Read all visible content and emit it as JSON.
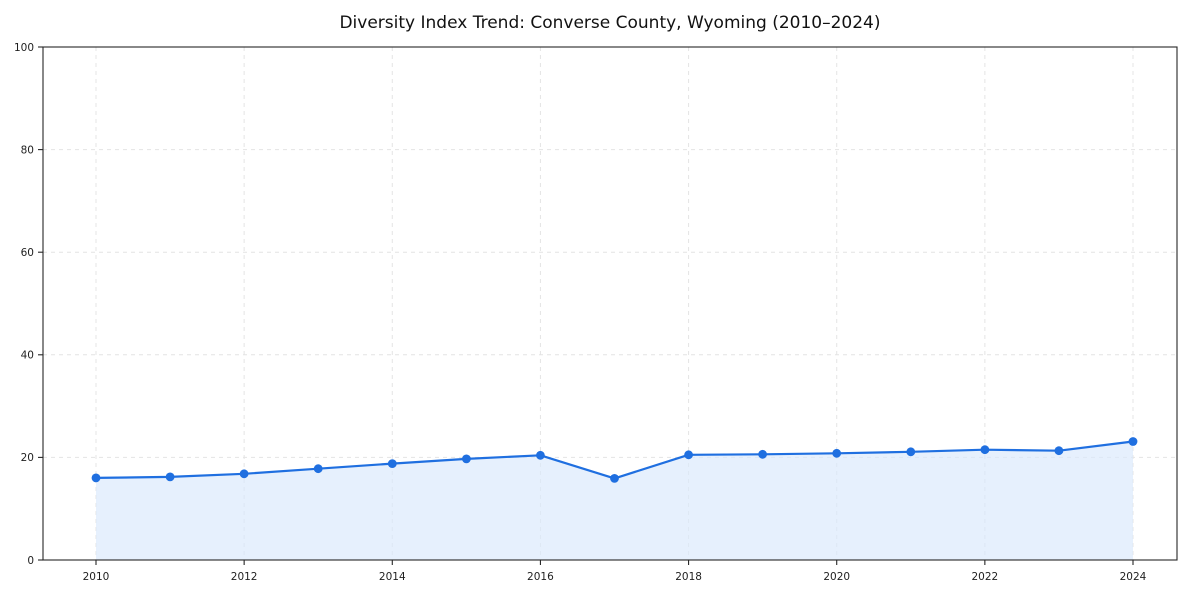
{
  "page": {
    "title": "Diversity Index Trend: Converse County, Wyoming (2010–2024)"
  },
  "chart_data": {
    "type": "area",
    "title": "Diversity Index Trend: Converse County, Wyoming (2010–2024)",
    "x": [
      2010,
      2011,
      2012,
      2013,
      2014,
      2015,
      2016,
      2017,
      2018,
      2019,
      2020,
      2021,
      2022,
      2023,
      2024
    ],
    "values": [
      16.0,
      16.2,
      16.8,
      17.8,
      18.8,
      19.7,
      20.4,
      15.9,
      20.5,
      20.6,
      20.8,
      21.1,
      21.5,
      21.3,
      23.1
    ],
    "xlabel": "",
    "ylabel": "",
    "ylim": [
      0,
      100
    ],
    "yticks": [
      0,
      20,
      40,
      60,
      80,
      100
    ],
    "xticks": [
      2010,
      2012,
      2014,
      2016,
      2018,
      2020,
      2022,
      2024
    ],
    "grid": "dashed",
    "legend": "none",
    "colors": {
      "line": "#1f6fe0",
      "marker": "#1f6fe0",
      "fill": "#d9e8fc",
      "fill_opacity": 0.65,
      "grid": "#e4e4e4",
      "axis": "#262626",
      "tick_text": "#1f1f1f"
    }
  }
}
